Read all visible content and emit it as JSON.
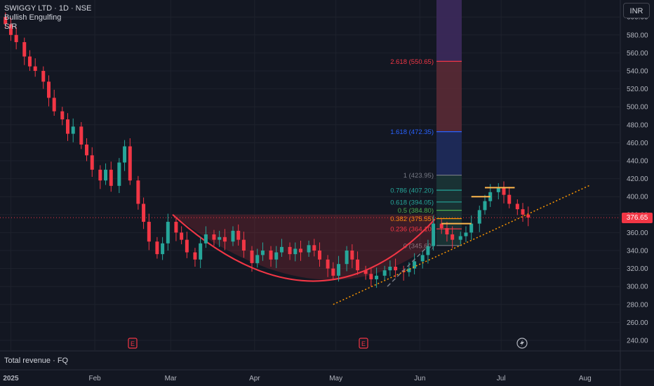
{
  "legend": {
    "symbol_line": "SWIGGY LTD · 1D · NSE",
    "indicator_1": "Bullish Engulfing",
    "indicator_2": "S/R"
  },
  "currency_button": "INR",
  "lower_pane_label": "Total revenue · FQ",
  "last_price": "376.65",
  "colors": {
    "up": "#26a69a",
    "down": "#f23645",
    "background": "#131722",
    "grid": "#1e222d",
    "cup": "#f23645"
  },
  "icons": {
    "earnings_marker": "E",
    "dividend_marker": "lightning-icon"
  },
  "chart_data": {
    "type": "candlestick",
    "title": "SWIGGY LTD · 1D · NSE",
    "ylim": [
      230,
      620
    ],
    "y_ticks": [
      "240.00",
      "260.00",
      "280.00",
      "300.00",
      "320.00",
      "340.00",
      "360.00",
      "380.00",
      "400.00",
      "420.00",
      "440.00",
      "460.00",
      "480.00",
      "500.00",
      "520.00",
      "540.00",
      "560.00",
      "580.00",
      "600.00"
    ],
    "x_ticks": [
      "2025",
      "Feb",
      "Mar",
      "Apr",
      "May",
      "Jun",
      "Jul",
      "Aug"
    ],
    "x_tick_dates": [
      "2025-01-01",
      "2025-02-01",
      "2025-03-01",
      "2025-04-01",
      "2025-05-01",
      "2025-06-01",
      "2025-07-01",
      "2025-08-01"
    ],
    "x_range": [
      "2024-12-28",
      "2025-08-14"
    ],
    "close_series": [
      {
        "d": "2024-12-30",
        "c": 592
      },
      {
        "d": "2025-01-01",
        "c": 580
      },
      {
        "d": "2025-01-03",
        "c": 572
      },
      {
        "d": "2025-01-06",
        "c": 556
      },
      {
        "d": "2025-01-08",
        "c": 545
      },
      {
        "d": "2025-01-10",
        "c": 540
      },
      {
        "d": "2025-01-13",
        "c": 528
      },
      {
        "d": "2025-01-15",
        "c": 510
      },
      {
        "d": "2025-01-17",
        "c": 495
      },
      {
        "d": "2025-01-20",
        "c": 486
      },
      {
        "d": "2025-01-22",
        "c": 470
      },
      {
        "d": "2025-01-24",
        "c": 478
      },
      {
        "d": "2025-01-27",
        "c": 458
      },
      {
        "d": "2025-01-29",
        "c": 446
      },
      {
        "d": "2025-01-31",
        "c": 430
      },
      {
        "d": "2025-02-03",
        "c": 418
      },
      {
        "d": "2025-02-05",
        "c": 430
      },
      {
        "d": "2025-02-07",
        "c": 412
      },
      {
        "d": "2025-02-10",
        "c": 438
      },
      {
        "d": "2025-02-12",
        "c": 456
      },
      {
        "d": "2025-02-14",
        "c": 418
      },
      {
        "d": "2025-02-17",
        "c": 392
      },
      {
        "d": "2025-02-19",
        "c": 372
      },
      {
        "d": "2025-02-21",
        "c": 350
      },
      {
        "d": "2025-02-24",
        "c": 336
      },
      {
        "d": "2025-02-26",
        "c": 348
      },
      {
        "d": "2025-02-28",
        "c": 372
      },
      {
        "d": "2025-03-03",
        "c": 360
      },
      {
        "d": "2025-03-05",
        "c": 352
      },
      {
        "d": "2025-03-07",
        "c": 338
      },
      {
        "d": "2025-03-10",
        "c": 330
      },
      {
        "d": "2025-03-12",
        "c": 348
      },
      {
        "d": "2025-03-14",
        "c": 358
      },
      {
        "d": "2025-03-17",
        "c": 352
      },
      {
        "d": "2025-03-19",
        "c": 355
      },
      {
        "d": "2025-03-21",
        "c": 350
      },
      {
        "d": "2025-03-24",
        "c": 362
      },
      {
        "d": "2025-03-26",
        "c": 352
      },
      {
        "d": "2025-03-28",
        "c": 340
      },
      {
        "d": "2025-03-31",
        "c": 326
      },
      {
        "d": "2025-04-02",
        "c": 335
      },
      {
        "d": "2025-04-04",
        "c": 340
      },
      {
        "d": "2025-04-07",
        "c": 330
      },
      {
        "d": "2025-04-09",
        "c": 338
      },
      {
        "d": "2025-04-11",
        "c": 344
      },
      {
        "d": "2025-04-14",
        "c": 336
      },
      {
        "d": "2025-04-16",
        "c": 342
      },
      {
        "d": "2025-04-18",
        "c": 338
      },
      {
        "d": "2025-04-21",
        "c": 346
      },
      {
        "d": "2025-04-23",
        "c": 340
      },
      {
        "d": "2025-04-25",
        "c": 330
      },
      {
        "d": "2025-04-28",
        "c": 320
      },
      {
        "d": "2025-04-30",
        "c": 312
      },
      {
        "d": "2025-05-02",
        "c": 325
      },
      {
        "d": "2025-05-05",
        "c": 340
      },
      {
        "d": "2025-05-07",
        "c": 330
      },
      {
        "d": "2025-05-09",
        "c": 318
      },
      {
        "d": "2025-05-12",
        "c": 314
      },
      {
        "d": "2025-05-14",
        "c": 308
      },
      {
        "d": "2025-05-16",
        "c": 312
      },
      {
        "d": "2025-05-19",
        "c": 318
      },
      {
        "d": "2025-05-21",
        "c": 322
      },
      {
        "d": "2025-05-23",
        "c": 318
      },
      {
        "d": "2025-05-26",
        "c": 316
      },
      {
        "d": "2025-05-28",
        "c": 320
      },
      {
        "d": "2025-05-30",
        "c": 328
      },
      {
        "d": "2025-06-02",
        "c": 335
      },
      {
        "d": "2025-06-04",
        "c": 345
      },
      {
        "d": "2025-06-06",
        "c": 370
      },
      {
        "d": "2025-06-09",
        "c": 365
      },
      {
        "d": "2025-06-11",
        "c": 358
      },
      {
        "d": "2025-06-13",
        "c": 352
      },
      {
        "d": "2025-06-16",
        "c": 356
      },
      {
        "d": "2025-06-18",
        "c": 360
      },
      {
        "d": "2025-06-20",
        "c": 370
      },
      {
        "d": "2025-06-23",
        "c": 385
      },
      {
        "d": "2025-06-25",
        "c": 395
      },
      {
        "d": "2025-06-27",
        "c": 405
      },
      {
        "d": "2025-06-30",
        "c": 410
      },
      {
        "d": "2025-07-02",
        "c": 402
      },
      {
        "d": "2025-07-04",
        "c": 392
      },
      {
        "d": "2025-07-07",
        "c": 386
      },
      {
        "d": "2025-07-09",
        "c": 380
      },
      {
        "d": "2025-07-11",
        "c": 376.65
      }
    ],
    "fibonacci_levels": [
      {
        "label": "2.618 (550.65)",
        "value": 550.65,
        "color": "#f23645"
      },
      {
        "label": "1.618 (472.35)",
        "value": 472.35,
        "color": "#2962ff"
      },
      {
        "label": "1 (423.95)",
        "value": 423.95,
        "color": "#787b86"
      },
      {
        "label": "0.786 (407.20)",
        "value": 407.2,
        "color": "#26a69a"
      },
      {
        "label": "0.618 (394.05)",
        "value": 394.05,
        "color": "#26a69a"
      },
      {
        "label": "0.5 (384.80)",
        "value": 384.8,
        "color": "#4caf50"
      },
      {
        "label": "0.382 (375.55)",
        "value": 375.55,
        "color": "#ff9800"
      },
      {
        "label": "0.236 (364.10)",
        "value": 364.1,
        "color": "#f23645"
      },
      {
        "label": "0 (345.60)",
        "value": 345.6,
        "color": "#787b86"
      }
    ],
    "last_price": 376.65,
    "grid": true
  }
}
